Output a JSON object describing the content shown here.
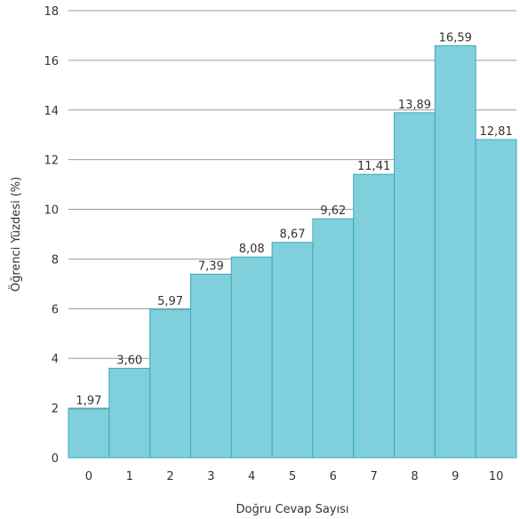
{
  "chart_data": {
    "type": "bar",
    "categories": [
      "0",
      "1",
      "2",
      "3",
      "4",
      "5",
      "6",
      "7",
      "8",
      "9",
      "10"
    ],
    "values": [
      1.97,
      3.6,
      5.97,
      7.39,
      8.08,
      8.67,
      9.62,
      11.41,
      13.89,
      16.59,
      12.81
    ],
    "value_labels": [
      "1,97",
      "3,60",
      "5,97",
      "7,39",
      "8,08",
      "8,67",
      "9,62",
      "11,41",
      "13,89",
      "16,59",
      "12,81"
    ],
    "xlabel": "Doğru Cevap Sayısı",
    "ylabel": "Öğrenci Yüzdesi (%)",
    "ylim": [
      0,
      18
    ],
    "yticks": [
      0,
      2,
      4,
      6,
      8,
      10,
      12,
      14,
      16,
      18
    ],
    "grid": true,
    "bar_color": "#7fd0dc",
    "bar_edge_color": "#3aa9b8"
  }
}
